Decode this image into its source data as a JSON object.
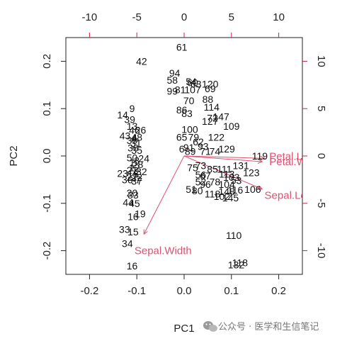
{
  "chart_data": {
    "type": "scatter",
    "subtype": "pca-biplot",
    "xlabel": "PC1",
    "ylabel": "PC2",
    "xlim": [
      -0.25,
      0.25
    ],
    "ylim": [
      -0.25,
      0.25
    ],
    "x_ticks": [
      "-0.2",
      "-0.1",
      "0.0",
      "0.1",
      "0.2"
    ],
    "y_ticks": [
      "-0.2",
      "-0.1",
      "0.0",
      "0.1",
      "0.2"
    ],
    "top_axis": {
      "lim": [
        -12.5,
        12.5
      ],
      "ticks": [
        "-10",
        "-5",
        "0",
        "5",
        "10"
      ],
      "color": "#cc2244"
    },
    "right_axis": {
      "lim": [
        -12.5,
        12.5
      ],
      "ticks": [
        "-10",
        "-5",
        "0",
        "5",
        "10"
      ],
      "color": "#cc2244"
    },
    "grid": false,
    "points": [
      {
        "label": "42",
        "x": -0.09,
        "y": 0.2
      },
      {
        "label": "9",
        "x": -0.11,
        "y": 0.1
      },
      {
        "label": "14",
        "x": -0.13,
        "y": 0.087
      },
      {
        "label": "39",
        "x": -0.115,
        "y": 0.077
      },
      {
        "label": "13",
        "x": -0.11,
        "y": 0.063
      },
      {
        "label": "46",
        "x": -0.105,
        "y": 0.055
      },
      {
        "label": "26",
        "x": -0.092,
        "y": 0.055
      },
      {
        "label": "43",
        "x": -0.125,
        "y": 0.043
      },
      {
        "label": "4",
        "x": -0.105,
        "y": 0.038
      },
      {
        "label": "31",
        "x": -0.102,
        "y": 0.027
      },
      {
        "label": "48",
        "x": -0.1,
        "y": 0.04
      },
      {
        "label": "30",
        "x": -0.11,
        "y": 0.033
      },
      {
        "label": "36",
        "x": -0.108,
        "y": 0.017
      },
      {
        "label": "35",
        "x": -0.1,
        "y": 0.012
      },
      {
        "label": "50",
        "x": -0.11,
        "y": -0.004
      },
      {
        "label": "24",
        "x": -0.085,
        "y": -0.005
      },
      {
        "label": "8",
        "x": -0.1,
        "y": -0.01
      },
      {
        "label": "1",
        "x": -0.11,
        "y": -0.014
      },
      {
        "label": "28",
        "x": -0.098,
        "y": -0.018
      },
      {
        "label": "23",
        "x": -0.13,
        "y": -0.037
      },
      {
        "label": "21",
        "x": -0.11,
        "y": -0.03
      },
      {
        "label": "32",
        "x": -0.09,
        "y": -0.033
      },
      {
        "label": "22",
        "x": -0.1,
        "y": -0.045
      },
      {
        "label": "18",
        "x": -0.108,
        "y": -0.038
      },
      {
        "label": "7",
        "x": -0.097,
        "y": -0.05
      },
      {
        "label": "36",
        "x": -0.12,
        "y": -0.05
      },
      {
        "label": "37",
        "x": -0.1,
        "y": -0.053
      },
      {
        "label": "27",
        "x": -0.11,
        "y": -0.045
      },
      {
        "label": "12",
        "x": -0.105,
        "y": -0.025
      },
      {
        "label": "33",
        "x": -0.108,
        "y": -0.082
      },
      {
        "label": "20",
        "x": -0.11,
        "y": -0.078
      },
      {
        "label": "44",
        "x": -0.118,
        "y": -0.098
      },
      {
        "label": "45",
        "x": -0.105,
        "y": -0.1
      },
      {
        "label": "16",
        "x": -0.108,
        "y": -0.128
      },
      {
        "label": "19",
        "x": -0.093,
        "y": -0.122
      },
      {
        "label": "33",
        "x": -0.126,
        "y": -0.155
      },
      {
        "label": "15",
        "x": -0.108,
        "y": -0.16
      },
      {
        "label": "34",
        "x": -0.12,
        "y": -0.185
      },
      {
        "label": "16",
        "x": -0.11,
        "y": -0.232
      },
      {
        "label": "61",
        "x": -0.005,
        "y": 0.23
      },
      {
        "label": "94",
        "x": -0.02,
        "y": 0.175
      },
      {
        "label": "58",
        "x": -0.025,
        "y": 0.16
      },
      {
        "label": "99",
        "x": -0.025,
        "y": 0.137
      },
      {
        "label": "54",
        "x": 0.015,
        "y": 0.157
      },
      {
        "label": "60",
        "x": 0.018,
        "y": 0.155
      },
      {
        "label": "63",
        "x": 0.025,
        "y": 0.152
      },
      {
        "label": "120",
        "x": 0.055,
        "y": 0.152
      },
      {
        "label": "81",
        "x": -0.008,
        "y": 0.14
      },
      {
        "label": "107",
        "x": 0.018,
        "y": 0.14
      },
      {
        "label": "69",
        "x": 0.055,
        "y": 0.142
      },
      {
        "label": "88",
        "x": 0.05,
        "y": 0.12
      },
      {
        "label": "70",
        "x": 0.01,
        "y": 0.117
      },
      {
        "label": "114",
        "x": 0.058,
        "y": 0.103
      },
      {
        "label": "86",
        "x": -0.005,
        "y": 0.097
      },
      {
        "label": "83",
        "x": 0.006,
        "y": 0.09
      },
      {
        "label": "147",
        "x": 0.078,
        "y": 0.083
      },
      {
        "label": "72",
        "x": 0.06,
        "y": 0.08
      },
      {
        "label": "127",
        "x": 0.055,
        "y": 0.073
      },
      {
        "label": "109",
        "x": 0.1,
        "y": 0.063
      },
      {
        "label": "100",
        "x": 0.012,
        "y": 0.056
      },
      {
        "label": "65",
        "x": -0.005,
        "y": 0.04
      },
      {
        "label": "122",
        "x": 0.068,
        "y": 0.04
      },
      {
        "label": "79",
        "x": 0.02,
        "y": 0.04
      },
      {
        "label": "62",
        "x": 0.03,
        "y": 0.03
      },
      {
        "label": "91",
        "x": 0.01,
        "y": 0.018
      },
      {
        "label": "93",
        "x": 0.04,
        "y": 0.02
      },
      {
        "label": "129",
        "x": 0.09,
        "y": 0.015
      },
      {
        "label": "6",
        "x": -0.005,
        "y": 0.015
      },
      {
        "label": "89",
        "x": 0.013,
        "y": 0.01
      },
      {
        "label": "71",
        "x": 0.045,
        "y": 0.01
      },
      {
        "label": "74",
        "x": 0.065,
        "y": 0.01
      },
      {
        "label": "119",
        "x": 0.16,
        "y": 0.0
      },
      {
        "label": "131",
        "x": 0.12,
        "y": -0.02
      },
      {
        "label": "73",
        "x": 0.035,
        "y": -0.02
      },
      {
        "label": "75",
        "x": 0.018,
        "y": -0.025
      },
      {
        "label": "111",
        "x": 0.085,
        "y": -0.028
      },
      {
        "label": "123",
        "x": 0.142,
        "y": -0.035
      },
      {
        "label": "85",
        "x": 0.06,
        "y": -0.028
      },
      {
        "label": "113",
        "x": 0.09,
        "y": -0.038
      },
      {
        "label": "103",
        "x": 0.1,
        "y": -0.045
      },
      {
        "label": "56",
        "x": 0.035,
        "y": -0.04
      },
      {
        "label": "67",
        "x": 0.045,
        "y": -0.042
      },
      {
        "label": "53",
        "x": 0.11,
        "y": -0.052
      },
      {
        "label": "52",
        "x": 0.035,
        "y": -0.055
      },
      {
        "label": "78",
        "x": 0.065,
        "y": -0.055
      },
      {
        "label": "104",
        "x": 0.09,
        "y": -0.06
      },
      {
        "label": "106",
        "x": 0.145,
        "y": -0.07
      },
      {
        "label": "96",
        "x": 0.045,
        "y": -0.06
      },
      {
        "label": "116",
        "x": 0.108,
        "y": -0.072
      },
      {
        "label": "80",
        "x": 0.028,
        "y": -0.073
      },
      {
        "label": "51",
        "x": 0.015,
        "y": -0.07
      },
      {
        "label": "118",
        "x": 0.06,
        "y": -0.08
      },
      {
        "label": "110",
        "x": 0.105,
        "y": -0.168
      },
      {
        "label": "145",
        "x": 0.098,
        "y": -0.088
      },
      {
        "label": "102",
        "x": 0.08,
        "y": -0.085
      },
      {
        "label": "148",
        "x": 0.09,
        "y": -0.075
      },
      {
        "label": "118",
        "x": 0.118,
        "y": -0.225
      },
      {
        "label": "132",
        "x": 0.11,
        "y": -0.23
      }
    ],
    "loadings": [
      {
        "name": "Petal.Length",
        "label": "Petal.Le",
        "x": 0.17,
        "y": -0.005,
        "lx": 0.18,
        "ly": -0.001
      },
      {
        "name": "Petal.Width",
        "label": "Petal.W",
        "x": 0.165,
        "y": -0.012,
        "lx": 0.18,
        "ly": -0.012
      },
      {
        "name": "Sepal.Length",
        "label": "Sepal.Len",
        "x": 0.165,
        "y": -0.07,
        "lx": 0.17,
        "ly": -0.083
      },
      {
        "name": "Sepal.Width",
        "label": "Sepal.Width",
        "x": -0.085,
        "y": -0.165,
        "lx": -0.105,
        "ly": -0.2
      }
    ],
    "loading_color": "#e05070"
  },
  "watermark": {
    "icon": "wechat-icon",
    "text": "公众号 · 医学和生信笔记"
  }
}
